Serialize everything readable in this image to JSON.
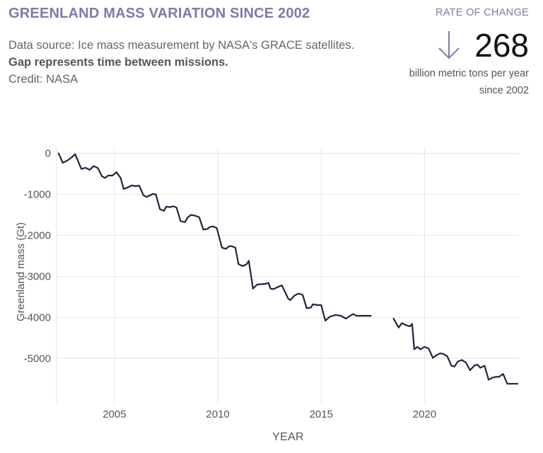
{
  "header": {
    "title": "GREENLAND MASS VARIATION SINCE 2002",
    "desc_line": "Data source: Ice mass measurement by NASA's GRACE satellites.",
    "desc_bold": "Gap represents time between missions.",
    "credit": "Credit: NASA"
  },
  "rate": {
    "label": "RATE OF CHANGE",
    "value": "268",
    "unit": "billion metric tons per year since 2002",
    "direction": "down"
  },
  "colors": {
    "line": "#25223d",
    "accent": "#7f7aa6",
    "grid": "#e6e6e6"
  },
  "chart_data": {
    "type": "line",
    "xlabel": "YEAR",
    "ylabel": "Greenland mass (Gt)",
    "xlim": [
      2002.2,
      2024.6
    ],
    "ylim": [
      -6100,
      150
    ],
    "xticks": [
      2005,
      2010,
      2015,
      2020
    ],
    "yticks": [
      0,
      -1000,
      -2000,
      -3000,
      -4000,
      -5000
    ],
    "grid": true,
    "series": [
      {
        "x": [
          2002.3,
          2002.5,
          2002.7,
          2002.9,
          2003.1,
          2003.25,
          2003.4,
          2003.6,
          2003.8,
          2004.0,
          2004.2,
          2004.4,
          2004.55,
          2004.7,
          2004.9,
          2005.1,
          2005.3,
          2005.45,
          2005.6,
          2005.85,
          2006.0,
          2006.2,
          2006.4,
          2006.55,
          2006.7,
          2006.85,
          2007.0,
          2007.2,
          2007.4,
          2007.5,
          2007.7,
          2007.85,
          2008.0,
          2008.2,
          2008.4,
          2008.55,
          2008.7,
          2008.9,
          2009.1,
          2009.3,
          2009.5,
          2009.6,
          2009.75,
          2009.95,
          2010.2,
          2010.4,
          2010.5,
          2010.65,
          2010.85,
          2011.0,
          2011.2,
          2011.4,
          2011.5,
          2011.7,
          2011.9,
          2012.1,
          2012.3,
          2012.45,
          2012.55,
          2012.7,
          2012.9,
          2013.1,
          2013.4,
          2013.5,
          2013.7,
          2013.9,
          2014.1,
          2014.3,
          2014.5,
          2014.6,
          2014.8,
          2015.0,
          2015.2,
          2015.4,
          2015.5,
          2015.7,
          2015.95,
          2016.2,
          2016.4,
          2016.55,
          2016.7,
          2016.9,
          2017.1,
          2017.2,
          2017.4
        ],
        "y": [
          0,
          -230,
          -180,
          -110,
          -20,
          -200,
          -380,
          -350,
          -400,
          -310,
          -360,
          -560,
          -600,
          -540,
          -540,
          -460,
          -600,
          -870,
          -840,
          -780,
          -800,
          -790,
          -1020,
          -1060,
          -1030,
          -990,
          -1000,
          -1360,
          -1400,
          -1300,
          -1310,
          -1290,
          -1320,
          -1650,
          -1680,
          -1560,
          -1500,
          -1520,
          -1560,
          -1860,
          -1840,
          -1800,
          -1780,
          -1820,
          -2300,
          -2330,
          -2280,
          -2260,
          -2300,
          -2700,
          -2750,
          -2700,
          -2620,
          -3300,
          -3200,
          -3190,
          -3180,
          -3160,
          -3300,
          -3310,
          -3260,
          -3220,
          -3540,
          -3580,
          -3470,
          -3420,
          -3450,
          -3780,
          -3760,
          -3680,
          -3700,
          -3700,
          -4080,
          -3990,
          -3970,
          -3940,
          -3960,
          -4030,
          -3960,
          -3920,
          -3960,
          -3960,
          -3960,
          -3960,
          -3960
        ]
      },
      {
        "x": [
          2018.5,
          2018.75,
          2018.9,
          2019.1,
          2019.3,
          2019.4,
          2019.5,
          2019.65,
          2019.8,
          2020.0,
          2020.2,
          2020.4,
          2020.55,
          2020.75,
          2020.9,
          2021.1,
          2021.3,
          2021.45,
          2021.6,
          2021.8,
          2022.0,
          2022.2,
          2022.4,
          2022.55,
          2022.7,
          2022.9,
          2023.1,
          2023.3,
          2023.45,
          2023.6,
          2023.8,
          2024.0,
          2024.1,
          2024.3,
          2024.5
        ],
        "y": [
          -4030,
          -4250,
          -4140,
          -4190,
          -4220,
          -4160,
          -4780,
          -4720,
          -4780,
          -4720,
          -4760,
          -4990,
          -4930,
          -4880,
          -4890,
          -4950,
          -5180,
          -5200,
          -5080,
          -5040,
          -5100,
          -5290,
          -5180,
          -5150,
          -5230,
          -5180,
          -5520,
          -5470,
          -5450,
          -5450,
          -5380,
          -5620,
          -5620,
          -5620,
          -5620
        ]
      }
    ]
  }
}
